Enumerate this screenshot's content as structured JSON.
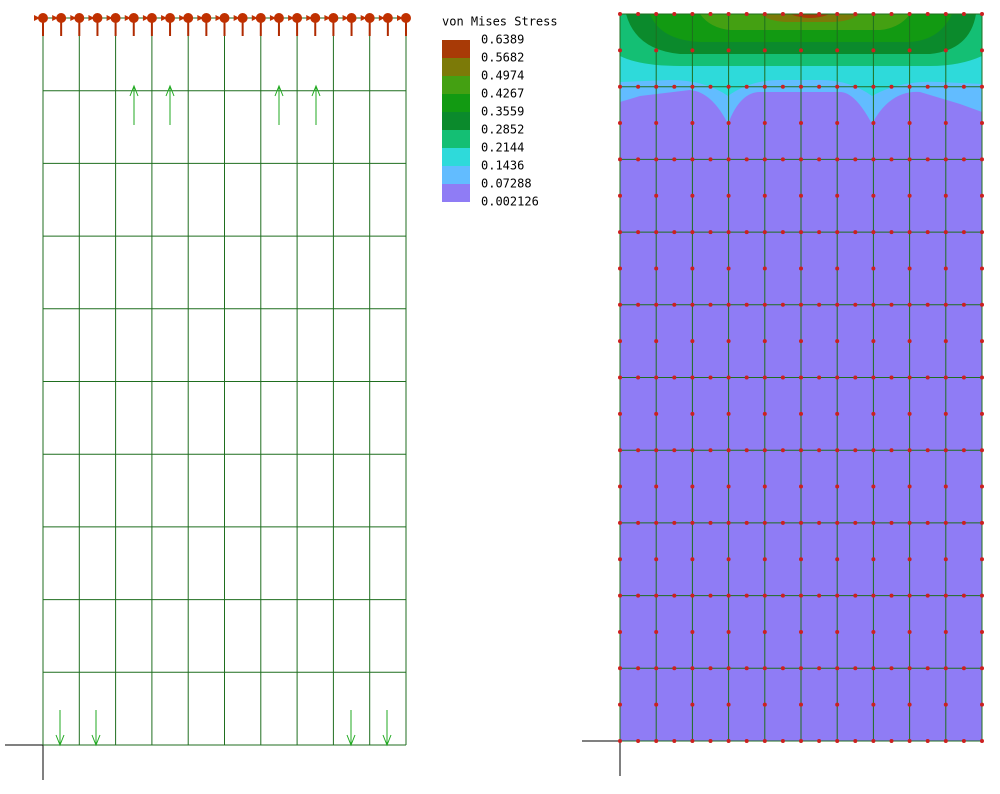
{
  "legend": {
    "title": "von Mises Stress",
    "labels": [
      "0.6389",
      "0.5682",
      "0.4974",
      "0.4267",
      "0.3559",
      "0.2852",
      "0.2144",
      "0.1436",
      "0.07288",
      "0.002126"
    ],
    "colors": [
      "#a83a06",
      "#7c7a08",
      "#44a012",
      "#129a12",
      "#0b8a2c",
      "#14bf74",
      "#2edada",
      "#62bcff",
      "#8f7cf5"
    ]
  }
}
